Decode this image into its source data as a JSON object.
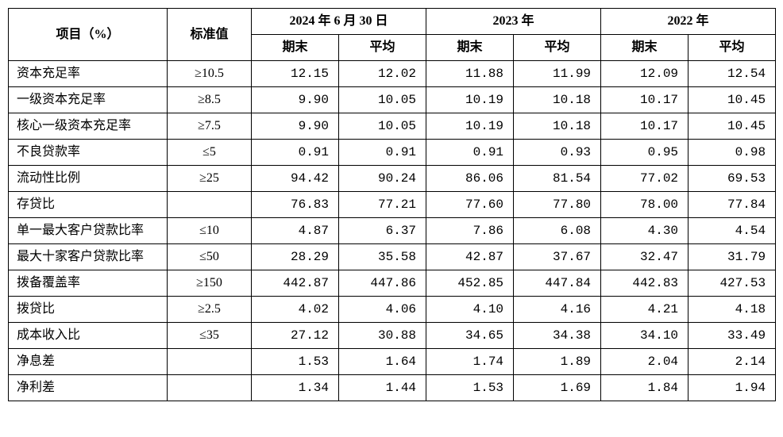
{
  "header": {
    "item": "项目（%）",
    "standard": "标准值",
    "periods": [
      "2024 年 6 月 30 日",
      "2023 年",
      "2022 年"
    ],
    "sub": {
      "end": "期末",
      "avg": "平均"
    }
  },
  "rows": [
    {
      "item": "资本充足率",
      "std": "≥10.5",
      "v": [
        "12.15",
        "12.02",
        "11.88",
        "11.99",
        "12.09",
        "12.54"
      ]
    },
    {
      "item": "一级资本充足率",
      "std": "≥8.5",
      "v": [
        "9.90",
        "10.05",
        "10.19",
        "10.18",
        "10.17",
        "10.45"
      ]
    },
    {
      "item": "核心一级资本充足率",
      "std": "≥7.5",
      "v": [
        "9.90",
        "10.05",
        "10.19",
        "10.18",
        "10.17",
        "10.45"
      ]
    },
    {
      "item": "不良贷款率",
      "std": "≤5",
      "v": [
        "0.91",
        "0.91",
        "0.91",
        "0.93",
        "0.95",
        "0.98"
      ]
    },
    {
      "item": "流动性比例",
      "std": "≥25",
      "v": [
        "94.42",
        "90.24",
        "86.06",
        "81.54",
        "77.02",
        "69.53"
      ]
    },
    {
      "item": "存贷比",
      "std": "",
      "v": [
        "76.83",
        "77.21",
        "77.60",
        "77.80",
        "78.00",
        "77.84"
      ]
    },
    {
      "item": "单一最大客户贷款比率",
      "std": "≤10",
      "v": [
        "4.87",
        "6.37",
        "7.86",
        "6.08",
        "4.30",
        "4.54"
      ]
    },
    {
      "item": "最大十家客户贷款比率",
      "std": "≤50",
      "v": [
        "28.29",
        "35.58",
        "42.87",
        "37.67",
        "32.47",
        "31.79"
      ]
    },
    {
      "item": "拨备覆盖率",
      "std": "≥150",
      "v": [
        "442.87",
        "447.86",
        "452.85",
        "447.84",
        "442.83",
        "427.53"
      ]
    },
    {
      "item": "拨贷比",
      "std": "≥2.5",
      "v": [
        "4.02",
        "4.06",
        "4.10",
        "4.16",
        "4.21",
        "4.18"
      ]
    },
    {
      "item": "成本收入比",
      "std": "≤35",
      "v": [
        "27.12",
        "30.88",
        "34.65",
        "34.38",
        "34.10",
        "33.49"
      ]
    },
    {
      "item": "净息差",
      "std": "",
      "v": [
        "1.53",
        "1.64",
        "1.74",
        "1.89",
        "2.04",
        "2.14"
      ]
    },
    {
      "item": "净利差",
      "std": "",
      "v": [
        "1.34",
        "1.44",
        "1.53",
        "1.69",
        "1.84",
        "1.94"
      ]
    }
  ],
  "style": {
    "border_color": "#000000",
    "background_color": "#ffffff",
    "header_fontsize": 16,
    "cell_fontsize": 16,
    "font_family_text": "SimSun",
    "font_family_num": "Courier New"
  }
}
